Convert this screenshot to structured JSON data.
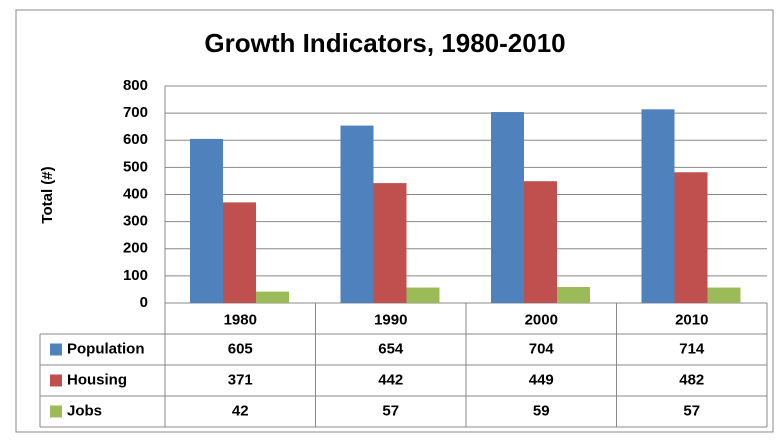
{
  "chart_data": {
    "type": "bar",
    "title": "Growth Indicators, 1980-2010",
    "y_label": "Total (#)",
    "categories": [
      "1980",
      "1990",
      "2000",
      "2010"
    ],
    "series": [
      {
        "name": "Population",
        "color": "#4f81bd",
        "values": [
          605,
          654,
          704,
          714
        ]
      },
      {
        "name": "Housing",
        "color": "#c0504d",
        "values": [
          371,
          442,
          449,
          482
        ]
      },
      {
        "name": "Jobs",
        "color": "#9bbb59",
        "values": [
          42,
          57,
          59,
          57
        ]
      }
    ],
    "ylim": [
      0,
      800
    ],
    "yticks": [
      0,
      100,
      200,
      300,
      400,
      500,
      600,
      700,
      800
    ],
    "grid": true,
    "data_table": true
  }
}
